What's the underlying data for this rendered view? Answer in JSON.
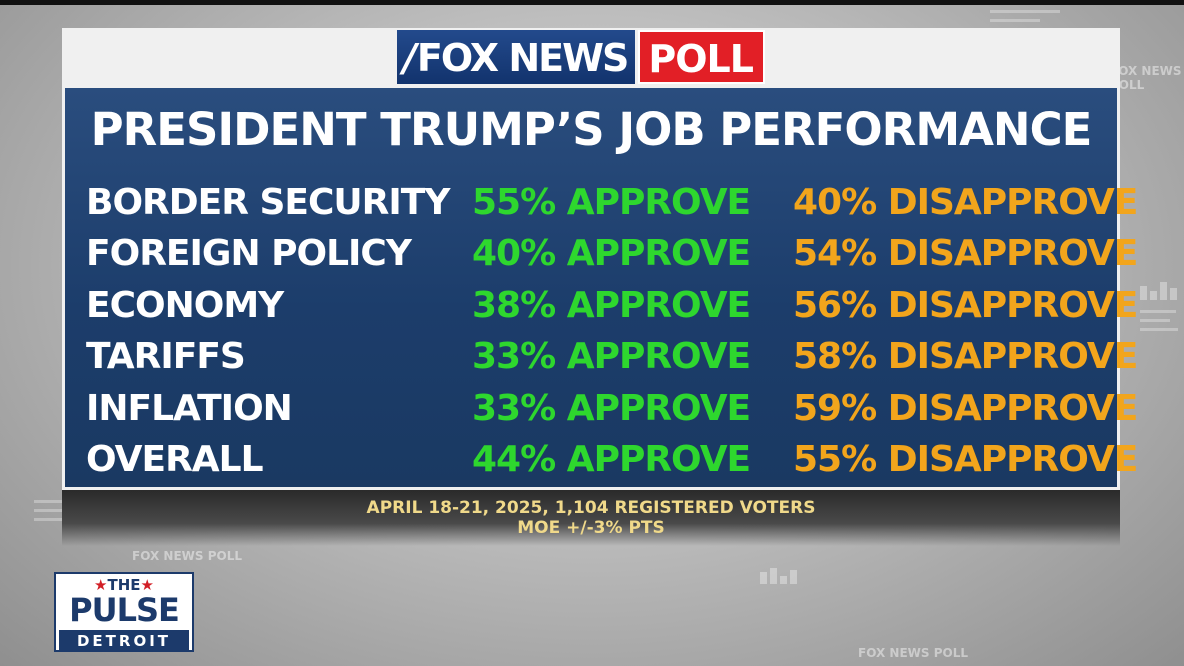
{
  "logo": {
    "brand": "FOX NEWS",
    "poll": "POLL"
  },
  "title": "PRESIDENT TRUMP’S JOB PERFORMANCE",
  "rows": [
    {
      "topic": "BORDER SECURITY",
      "approve": "55% APPROVE",
      "disapprove": "40% DISAPPROVE"
    },
    {
      "topic": "FOREIGN POLICY",
      "approve": "40% APPROVE",
      "disapprove": "54% DISAPPROVE"
    },
    {
      "topic": "ECONOMY",
      "approve": "38% APPROVE",
      "disapprove": "56% DISAPPROVE"
    },
    {
      "topic": "TARIFFS",
      "approve": "33% APPROVE",
      "disapprove": "58% DISAPPROVE"
    },
    {
      "topic": "INFLATION",
      "approve": "33% APPROVE",
      "disapprove": "59% DISAPPROVE"
    },
    {
      "topic": "OVERALL",
      "approve": "44% APPROVE",
      "disapprove": "55% DISAPPROVE"
    }
  ],
  "footer": {
    "line1": "APRIL 18-21, 2025, 1,104 REGISTERED VOTERS",
    "line2": "MOE +/-3% PTS"
  },
  "show_logo": {
    "the": "THE",
    "name": "PULSE",
    "city": "DETROIT"
  },
  "background_watermarks": [
    "FOX NEWS POLL",
    "FOX NEWS POLL",
    "FOX NEWS POLL"
  ],
  "colors": {
    "panel_blue": "#1d3f6d",
    "approve_green": "#2ed72e",
    "disapprove_orange": "#f2a51c",
    "fox_red": "#e21f26"
  }
}
